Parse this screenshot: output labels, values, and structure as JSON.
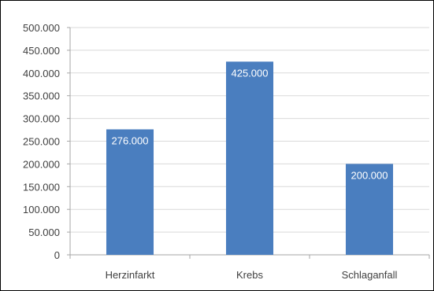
{
  "chart_data": {
    "type": "bar",
    "categories": [
      "Herzinfarkt",
      "Krebs",
      "Schlaganfall"
    ],
    "values": [
      276000,
      425000,
      200000
    ],
    "value_labels": [
      "276.000",
      "425.000",
      "200.000"
    ],
    "y_ticks": [
      0,
      50000,
      100000,
      150000,
      200000,
      250000,
      300000,
      350000,
      400000,
      450000,
      500000
    ],
    "y_tick_labels": [
      "0",
      "50.000",
      "100.000",
      "150.000",
      "200.000",
      "250.000",
      "300.000",
      "350.000",
      "400.000",
      "450.000",
      "500.000"
    ],
    "ylim": [
      0,
      500000
    ],
    "title": "",
    "xlabel": "",
    "ylabel": "",
    "grid": true,
    "legend": "none",
    "colors": {
      "bar": "#4a7ebf",
      "grid": "#d9d9d9",
      "axis": "#a6a6a6",
      "label_text": "#404040",
      "data_label_text": "#ffffff"
    }
  }
}
